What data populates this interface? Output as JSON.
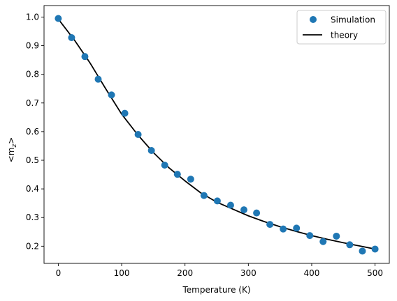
{
  "chart_data": {
    "type": "scatter",
    "xlabel": "Temperature (K)",
    "ylabel": "<m_z>",
    "ylabel_display": {
      "base": "<m",
      "sub": "z",
      "end": ">"
    },
    "xlim": [
      -22.5,
      522.5
    ],
    "ylim": [
      0.14,
      1.04
    ],
    "xticks": [
      0,
      100,
      200,
      300,
      400,
      500
    ],
    "yticks": [
      0.2,
      0.3,
      0.4,
      0.5,
      0.6,
      0.7,
      0.8,
      0.9,
      1.0
    ],
    "grid": false,
    "legend_placement": "top-right",
    "series": [
      {
        "name": "Simulation",
        "kind": "markers",
        "color": "#1f77b4",
        "x": [
          0,
          21,
          42,
          63,
          84,
          105,
          126,
          147,
          168,
          188,
          209,
          230,
          251,
          272,
          293,
          313,
          334,
          355,
          376,
          397,
          418,
          439,
          460,
          480,
          500
        ],
        "y": [
          0.995,
          0.928,
          0.862,
          0.783,
          0.728,
          0.664,
          0.59,
          0.534,
          0.483,
          0.451,
          0.434,
          0.377,
          0.358,
          0.343,
          0.327,
          0.316,
          0.276,
          0.26,
          0.263,
          0.237,
          0.216,
          0.235,
          0.205,
          0.183,
          0.19
        ]
      },
      {
        "name": "theory",
        "kind": "line",
        "color": "#000000",
        "x": [
          0,
          25,
          50,
          75,
          100,
          125,
          150,
          175,
          200,
          225,
          250,
          275,
          300,
          325,
          350,
          375,
          400,
          425,
          450,
          475,
          500
        ],
        "y": [
          0.993,
          0.921,
          0.84,
          0.749,
          0.661,
          0.59,
          0.527,
          0.473,
          0.428,
          0.386,
          0.354,
          0.33,
          0.306,
          0.286,
          0.268,
          0.252,
          0.237,
          0.224,
          0.212,
          0.201,
          0.19
        ]
      }
    ]
  }
}
